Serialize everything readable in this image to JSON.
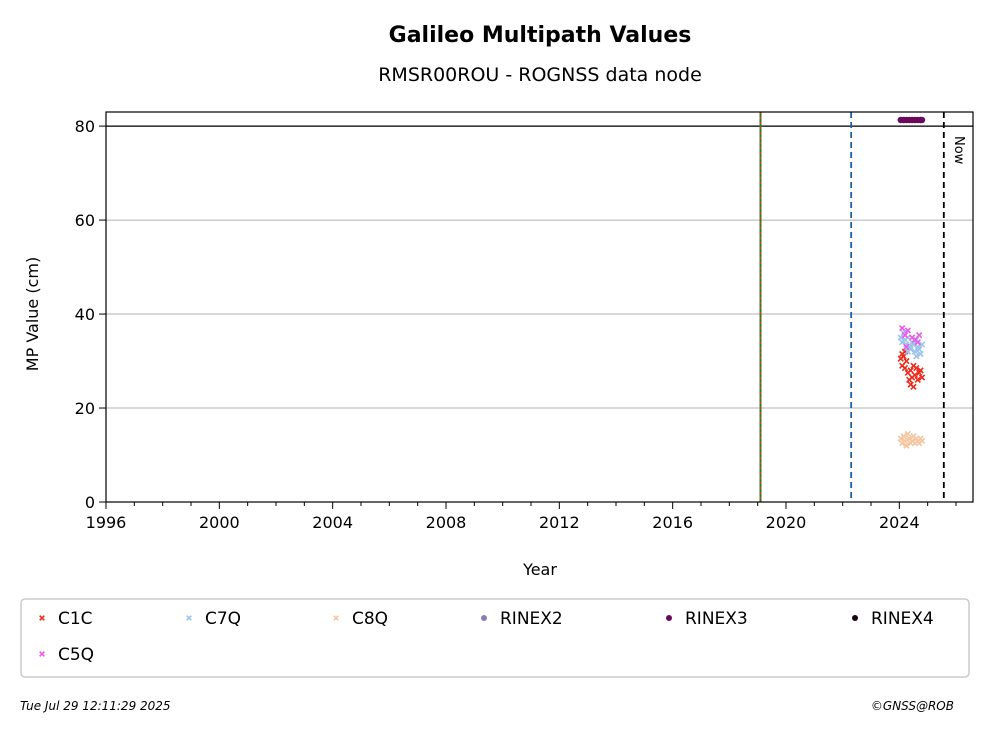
{
  "chart_data": {
    "type": "scatter",
    "title": "Galileo Multipath Values",
    "subtitle": "RMSR00ROU - ROGNSS data node",
    "xlabel": "Year",
    "ylabel": "MP Value (cm)",
    "xlim": [
      1996,
      2026.6
    ],
    "ylim": [
      0,
      83
    ],
    "x_ticks": [
      "1996",
      "2000",
      "2004",
      "2008",
      "2012",
      "2016",
      "2020",
      "2024"
    ],
    "y_ticks": [
      "0",
      "20",
      "40",
      "60",
      "80"
    ],
    "grid": "horizontal",
    "reference_line_y": 80,
    "vertical_lines": [
      {
        "x": 2019.1,
        "color": "#1a8a1a",
        "style": "solid"
      },
      {
        "x": 2019.1,
        "color": "#e03030",
        "style": "dotted"
      },
      {
        "x": 2022.3,
        "color": "#1f5fa6",
        "style": "dashed"
      },
      {
        "x": 2025.57,
        "color": "#000000",
        "style": "dashed",
        "label": "Now"
      }
    ],
    "series": [
      {
        "name": "C1C",
        "color": "#ee2a1a",
        "marker": "x",
        "points": [
          [
            2024.05,
            30.5
          ],
          [
            2024.1,
            29.0
          ],
          [
            2024.15,
            31.0
          ],
          [
            2024.2,
            28.5
          ],
          [
            2024.25,
            30.0
          ],
          [
            2024.3,
            27.5
          ],
          [
            2024.35,
            26.0
          ],
          [
            2024.4,
            28.0
          ],
          [
            2024.45,
            26.5
          ],
          [
            2024.5,
            29.0
          ],
          [
            2024.55,
            27.0
          ],
          [
            2024.6,
            28.5
          ],
          [
            2024.65,
            26.0
          ],
          [
            2024.7,
            27.5
          ],
          [
            2024.75,
            28.0
          ],
          [
            2024.8,
            26.5
          ],
          [
            2024.4,
            25.0
          ],
          [
            2024.5,
            24.5
          ],
          [
            2024.2,
            32.0
          ],
          [
            2024.1,
            31.5
          ]
        ]
      },
      {
        "name": "C7Q",
        "color": "#9bc4ea",
        "marker": "x",
        "points": [
          [
            2024.05,
            35.0
          ],
          [
            2024.1,
            34.0
          ],
          [
            2024.15,
            36.0
          ],
          [
            2024.2,
            34.5
          ],
          [
            2024.25,
            33.5
          ],
          [
            2024.3,
            35.0
          ],
          [
            2024.35,
            33.0
          ],
          [
            2024.4,
            32.5
          ],
          [
            2024.45,
            34.0
          ],
          [
            2024.5,
            33.5
          ],
          [
            2024.55,
            32.0
          ],
          [
            2024.6,
            34.5
          ],
          [
            2024.65,
            33.0
          ],
          [
            2024.7,
            32.5
          ],
          [
            2024.75,
            31.5
          ],
          [
            2024.8,
            33.5
          ],
          [
            2024.3,
            32.0
          ],
          [
            2024.6,
            31.0
          ]
        ]
      },
      {
        "name": "C8Q",
        "color": "#f5c6a0",
        "marker": "x",
        "points": [
          [
            2024.05,
            13.5
          ],
          [
            2024.1,
            12.5
          ],
          [
            2024.15,
            14.0
          ],
          [
            2024.2,
            13.0
          ],
          [
            2024.25,
            12.0
          ],
          [
            2024.3,
            14.5
          ],
          [
            2024.35,
            13.5
          ],
          [
            2024.4,
            12.5
          ],
          [
            2024.45,
            13.0
          ],
          [
            2024.5,
            14.0
          ],
          [
            2024.55,
            12.5
          ],
          [
            2024.6,
            13.5
          ],
          [
            2024.65,
            13.0
          ],
          [
            2024.7,
            12.5
          ],
          [
            2024.75,
            13.5
          ],
          [
            2024.8,
            13.0
          ]
        ]
      },
      {
        "name": "RINEX2",
        "color": "#8a7dbb",
        "marker": "o",
        "points": []
      },
      {
        "name": "RINEX3",
        "color": "#6a0a5a",
        "marker": "o",
        "points": [
          [
            2024.05,
            81.3
          ],
          [
            2024.15,
            81.3
          ],
          [
            2024.25,
            81.3
          ],
          [
            2024.35,
            81.3
          ],
          [
            2024.45,
            81.3
          ],
          [
            2024.55,
            81.3
          ],
          [
            2024.65,
            81.3
          ],
          [
            2024.75,
            81.3
          ],
          [
            2024.8,
            81.3
          ]
        ]
      },
      {
        "name": "RINEX4",
        "color": "#1a0010",
        "marker": "o",
        "points": []
      },
      {
        "name": "C5Q",
        "color": "#ee55ee",
        "marker": "x",
        "points": [
          [
            2024.1,
            37.0
          ],
          [
            2024.2,
            35.5
          ],
          [
            2024.3,
            36.5
          ],
          [
            2024.45,
            35.0
          ],
          [
            2024.55,
            34.5
          ],
          [
            2024.7,
            35.5
          ],
          [
            2024.25,
            33.0
          ],
          [
            2024.65,
            34.0
          ]
        ]
      }
    ],
    "legend_position": "bottom"
  },
  "footer": {
    "timestamp": "Tue Jul 29 12:11:29 2025",
    "copyright": "©GNSS@ROB"
  }
}
